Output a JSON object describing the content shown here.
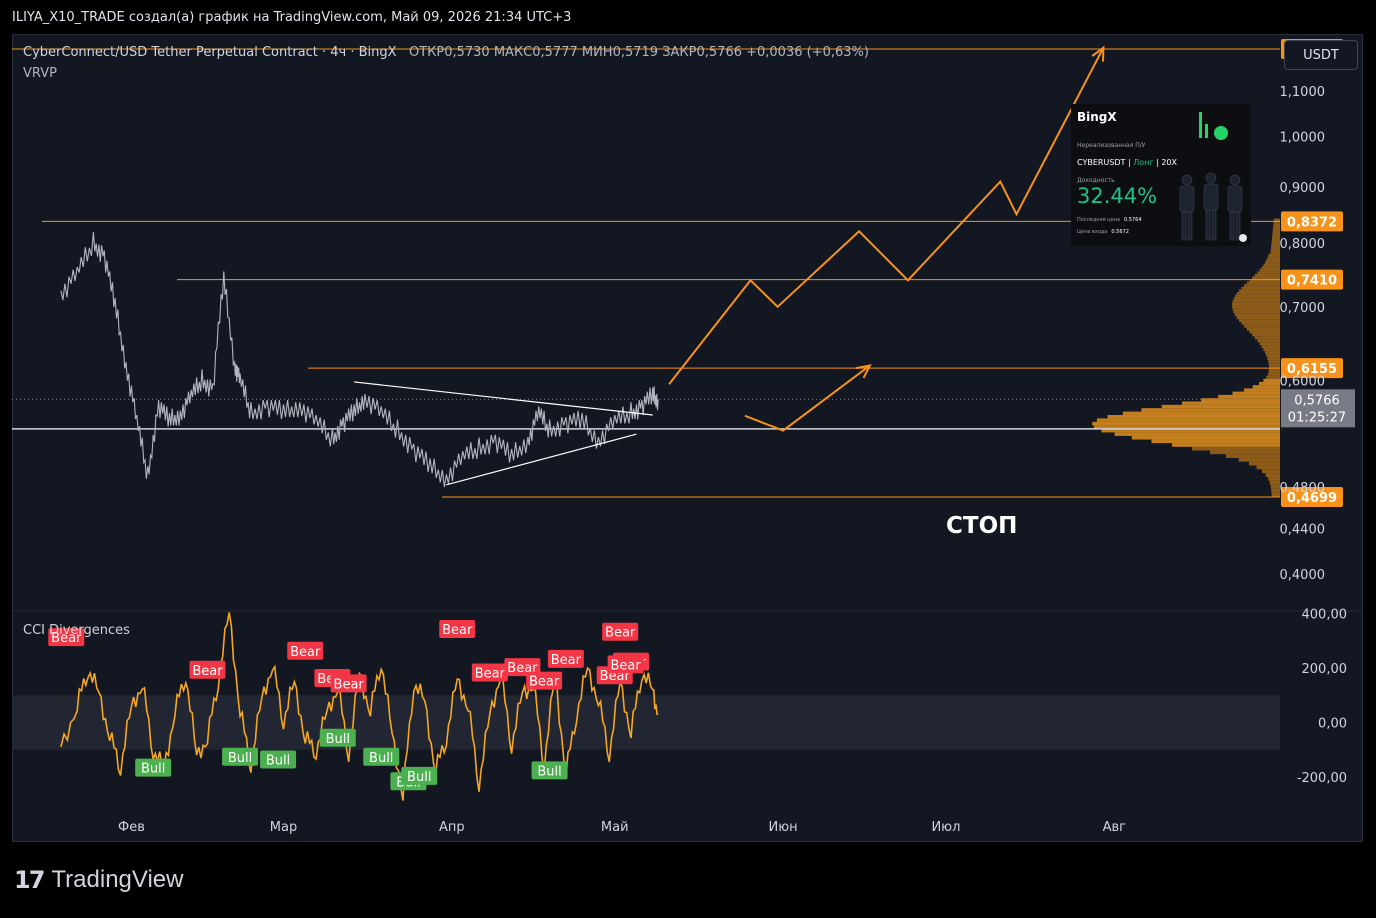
{
  "header": {
    "author_line": "ILIYA_X10_TRADE создал(а) график на TradingView.com, Май 09, 2026 21:34 UTC+3"
  },
  "legend": {
    "symbol": "CyberConnect/USD Tether Perpetual Contract · 4ч · BingX",
    "ohlc": "ОТКР0,5730  МАКС0,5777  МИН0,5719  ЗАКР0,5766  +0,0036 (+0,63%)",
    "indicator": "VRVP"
  },
  "currency_button": "USDT",
  "annotation_stop": "СТОП",
  "cci_title": "CCI Divergences",
  "brand": {
    "logo": "17",
    "name": "TradingView"
  },
  "pnl_card": {
    "brand": "BingX",
    "subtitle": "Нереализованная П/У",
    "pair": "CYBERUSDT",
    "side": "Лонг",
    "leverage": "20X",
    "return_label": "Доходность",
    "return_value": "32.44%",
    "last_price_label": "Последняя цена",
    "last_price": "0.5764",
    "entry_label": "Цена входа",
    "entry_price": "0.5672"
  },
  "colors": {
    "background": "#131722",
    "accent_orange": "#f7931a",
    "bear_red": "#f23645",
    "bull_green": "#4caf50",
    "cci_line": "#f5a623",
    "price_line": "#b2b5be"
  },
  "chart_data": [
    {
      "type": "line",
      "name": "price",
      "xlabel_ticks": [
        "Фев",
        "Мар",
        "Апр",
        "Май",
        "Июн",
        "Июл",
        "Авг"
      ],
      "y_ticks": [
        "1,1000",
        "1,0000",
        "0,9000",
        "0,8000",
        "0,7000",
        "0,6000",
        "0,4800",
        "0,4400",
        "0,4000"
      ],
      "y_scale": "log",
      "ylim": [
        0.37,
        1.24
      ],
      "levels": [
        {
          "label": "1,2016",
          "value": 1.2016,
          "color": "#f7931a"
        },
        {
          "label": "0,8372",
          "value": 0.8372,
          "color": "#f7931a"
        },
        {
          "label": "0,7410",
          "value": 0.741,
          "color": "#f7931a"
        },
        {
          "label": "0,6155",
          "value": 0.6155,
          "color": "#f7931a"
        },
        {
          "label": "0,4699",
          "value": 0.4699,
          "color": "#f7931a"
        }
      ],
      "support_level": 0.542,
      "last_price": {
        "label": "0,5766",
        "countdown": "01:25:27",
        "value": 0.5766
      },
      "series": [
        {
          "x": [
            "2026-01-19",
            "2026-01-22",
            "2026-01-25",
            "2026-01-27",
            "2026-01-29",
            "2026-01-31",
            "2026-02-02",
            "2026-02-04",
            "2026-02-06",
            "2026-02-08",
            "2026-02-10",
            "2026-02-12",
            "2026-02-14",
            "2026-02-16",
            "2026-02-18",
            "2026-02-20",
            "2026-02-21",
            "2026-02-23",
            "2026-02-26",
            "2026-03-01",
            "2026-03-04",
            "2026-03-07",
            "2026-03-10",
            "2026-03-12",
            "2026-03-14",
            "2026-03-16",
            "2026-03-19",
            "2026-03-22",
            "2026-03-25",
            "2026-03-28",
            "2026-03-31",
            "2026-04-03",
            "2026-04-06",
            "2026-04-09",
            "2026-04-12",
            "2026-04-15",
            "2026-04-17",
            "2026-04-19",
            "2026-04-22",
            "2026-04-25",
            "2026-04-28",
            "2026-05-01",
            "2026-05-04",
            "2026-05-06",
            "2026-05-08",
            "2026-05-09"
          ],
          "y": [
            0.72,
            0.75,
            0.8,
            0.78,
            0.7,
            0.62,
            0.55,
            0.49,
            0.57,
            0.55,
            0.56,
            0.58,
            0.6,
            0.59,
            0.74,
            0.62,
            0.6,
            0.56,
            0.57,
            0.56,
            0.57,
            0.55,
            0.53,
            0.55,
            0.56,
            0.58,
            0.56,
            0.54,
            0.52,
            0.5,
            0.49,
            0.51,
            0.52,
            0.53,
            0.51,
            0.53,
            0.56,
            0.54,
            0.55,
            0.55,
            0.53,
            0.55,
            0.56,
            0.57,
            0.58,
            0.5766
          ]
        }
      ],
      "drawings": {
        "triangle_upper": [
          [
            "2026-03-14",
            0.598
          ],
          [
            "2026-05-08",
            0.558
          ]
        ],
        "triangle_lower": [
          [
            "2026-03-31",
            0.482
          ],
          [
            "2026-05-05",
            0.536
          ]
        ],
        "projection_main": [
          [
            "2026-05-11",
            0.595
          ],
          [
            "2026-05-26",
            0.74
          ],
          [
            "2026-05-31",
            0.7
          ],
          [
            "2026-06-15",
            0.82
          ],
          [
            "2026-06-24",
            0.74
          ],
          [
            "2026-07-11",
            0.91
          ],
          [
            "2026-07-14",
            0.85
          ],
          [
            "2026-07-30",
            1.205
          ]
        ],
        "projection_alt": [
          [
            "2026-05-25",
            0.557
          ],
          [
            "2026-06-01",
            0.54
          ],
          [
            "2026-06-17",
            0.619
          ]
        ]
      },
      "volume_profile": "visible"
    },
    {
      "type": "line",
      "name": "CCI",
      "title": "CCI Divergences",
      "y_ticks": [
        "400,00",
        "200,00",
        "0,00",
        "-200,00"
      ],
      "ylim": [
        -300,
        410
      ],
      "band": [
        -100,
        100
      ],
      "series": [
        {
          "x": [
            "2026-01-19",
            "2026-01-22",
            "2026-01-24",
            "2026-01-26",
            "2026-01-28",
            "2026-01-30",
            "2026-02-01",
            "2026-02-03",
            "2026-02-05",
            "2026-02-07",
            "2026-02-09",
            "2026-02-11",
            "2026-02-13",
            "2026-02-15",
            "2026-02-17",
            "2026-02-19",
            "2026-02-21",
            "2026-02-23",
            "2026-02-25",
            "2026-02-27",
            "2026-03-01",
            "2026-03-03",
            "2026-03-05",
            "2026-03-07",
            "2026-03-09",
            "2026-03-11",
            "2026-03-13",
            "2026-03-15",
            "2026-03-17",
            "2026-03-19",
            "2026-03-21",
            "2026-03-23",
            "2026-03-25",
            "2026-03-27",
            "2026-03-29",
            "2026-03-31",
            "2026-04-02",
            "2026-04-04",
            "2026-04-06",
            "2026-04-08",
            "2026-04-10",
            "2026-04-12",
            "2026-04-14",
            "2026-04-16",
            "2026-04-18",
            "2026-04-20",
            "2026-04-22",
            "2026-04-24",
            "2026-04-26",
            "2026-04-28",
            "2026-04-30",
            "2026-05-02",
            "2026-05-04",
            "2026-05-06",
            "2026-05-08",
            "2026-05-09"
          ],
          "y": [
            -90,
            60,
            200,
            110,
            -50,
            -160,
            60,
            140,
            -100,
            -170,
            40,
            180,
            -120,
            -60,
            160,
            410,
            40,
            -150,
            90,
            210,
            10,
            150,
            -60,
            -100,
            40,
            130,
            -110,
            180,
            40,
            230,
            -40,
            -270,
            150,
            80,
            -180,
            -50,
            160,
            60,
            -220,
            30,
            180,
            -80,
            110,
            140,
            -150,
            180,
            -190,
            40,
            200,
            80,
            -110,
            150,
            -40,
            190,
            120,
            30
          ]
        }
      ],
      "signals": [
        {
          "label": "Bear",
          "date": "2026-01-20"
        },
        {
          "label": "Bull",
          "date": "2026-02-05"
        },
        {
          "label": "Bear",
          "date": "2026-02-15"
        },
        {
          "label": "Bull",
          "date": "2026-02-21"
        },
        {
          "label": "Bull",
          "date": "2026-02-28"
        },
        {
          "label": "Bear",
          "date": "2026-03-05"
        },
        {
          "label": "Bear",
          "date": "2026-03-10"
        },
        {
          "label": "Bull",
          "date": "2026-03-11"
        },
        {
          "label": "Bear",
          "date": "2026-03-13"
        },
        {
          "label": "Bull",
          "date": "2026-03-19"
        },
        {
          "label": "Bull",
          "date": "2026-03-24"
        },
        {
          "label": "Bull",
          "date": "2026-03-26"
        },
        {
          "label": "Bear",
          "date": "2026-04-02"
        },
        {
          "label": "Bear",
          "date": "2026-04-08"
        },
        {
          "label": "Bear",
          "date": "2026-04-14"
        },
        {
          "label": "Bear",
          "date": "2026-04-18"
        },
        {
          "label": "Bull",
          "date": "2026-04-19"
        },
        {
          "label": "Bear",
          "date": "2026-04-22"
        },
        {
          "label": "Bear",
          "date": "2026-05-01"
        },
        {
          "label": "Bear",
          "date": "2026-05-02"
        },
        {
          "label": "Bear",
          "date": "2026-05-04"
        },
        {
          "label": "Bear",
          "date": "2026-05-03"
        }
      ]
    }
  ]
}
